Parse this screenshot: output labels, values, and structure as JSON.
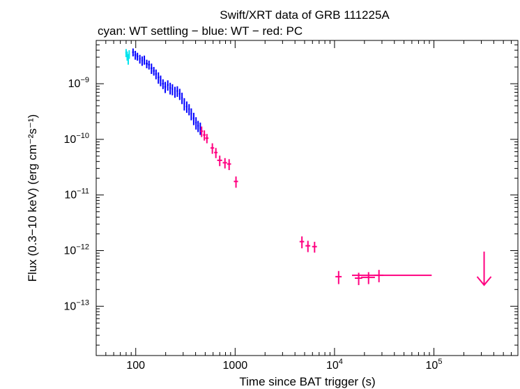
{
  "chart_data": {
    "type": "scatter",
    "title": "Swift/XRT data of GRB 111225A",
    "subtitle": "cyan: WT settling − blue: WT − red: PC",
    "xlabel": "Time since BAT trigger (s)",
    "ylabel": "Flux (0.3−10 keV) (erg cm⁻²s⁻¹)",
    "x_scale": "log",
    "y_scale": "log",
    "xlim": [
      40,
      700000
    ],
    "ylim": [
      1.3e-14,
      6e-09
    ],
    "x_ticks": [
      {
        "value": 100,
        "label": "100"
      },
      {
        "value": 1000,
        "label": "1000"
      },
      {
        "value": 10000,
        "base": "10",
        "exp": "4"
      },
      {
        "value": 100000,
        "base": "10",
        "exp": "5"
      }
    ],
    "y_ticks": [
      {
        "value": 1e-09,
        "base": "10",
        "exp": "−9"
      },
      {
        "value": 1e-10,
        "base": "10",
        "exp": "−10"
      },
      {
        "value": 1e-11,
        "base": "10",
        "exp": "−11"
      },
      {
        "value": 1e-12,
        "base": "10",
        "exp": "−12"
      },
      {
        "value": 1e-13,
        "base": "10",
        "exp": "−13"
      }
    ],
    "colors": {
      "wt_settling": "#00e5ee",
      "wt": "#0000ff",
      "pc": "#ff0080"
    },
    "series": [
      {
        "key": "wt_settling",
        "points": [
          [
            80,
            3.6e-09,
            1.5,
            6e-10
          ],
          [
            82,
            3.2e-09,
            1.5,
            6e-10
          ],
          [
            84,
            2.8e-09,
            1.5,
            6e-10
          ],
          [
            86,
            3.4e-09,
            1.5,
            6e-10
          ]
        ]
      },
      {
        "key": "wt",
        "points": [
          [
            94,
            3.7e-09,
            2,
            6e-10
          ],
          [
            99,
            3.3e-09,
            2,
            6e-10
          ],
          [
            104,
            3.1e-09,
            2,
            5e-10
          ],
          [
            110,
            2.8e-09,
            2,
            5e-10
          ],
          [
            116,
            2.6e-09,
            2,
            5e-10
          ],
          [
            122,
            2.7e-09,
            2,
            5e-10
          ],
          [
            129,
            2.3e-09,
            3,
            4e-10
          ],
          [
            136,
            2.2e-09,
            3,
            4e-10
          ],
          [
            144,
            1.9e-09,
            3,
            4e-10
          ],
          [
            152,
            1.7e-09,
            3,
            3e-10
          ],
          [
            160,
            1.5e-09,
            3,
            3e-10
          ],
          [
            169,
            1.3e-09,
            3,
            3e-10
          ],
          [
            178,
            1.15e-09,
            3,
            2.5e-10
          ],
          [
            188,
            1e-09,
            4,
            2e-10
          ],
          [
            198,
            8.8e-10,
            4,
            2e-10
          ],
          [
            210,
            9.5e-10,
            4,
            2e-10
          ],
          [
            222,
            8.4e-10,
            4,
            2e-10
          ],
          [
            234,
            8e-10,
            4,
            1.8e-10
          ],
          [
            248,
            7.2e-10,
            4,
            1.6e-10
          ],
          [
            262,
            7.4e-10,
            5,
            1.6e-10
          ],
          [
            277,
            6.6e-10,
            5,
            1.5e-10
          ],
          [
            292,
            5.6e-10,
            5,
            1.3e-10
          ],
          [
            308,
            4.4e-10,
            5,
            1.1e-10
          ],
          [
            326,
            3.9e-10,
            6,
            9e-11
          ],
          [
            344,
            3.5e-10,
            6,
            8e-11
          ],
          [
            362,
            2.9e-10,
            6,
            7e-11
          ],
          [
            383,
            2.4e-10,
            7,
            6e-11
          ],
          [
            404,
            2e-10,
            7,
            5e-11
          ],
          [
            424,
            1.75e-10,
            7,
            4e-11
          ],
          [
            446,
            1.6e-10,
            7,
            4e-11
          ]
        ]
      },
      {
        "key": "pc",
        "points": [
          [
            460,
            1.4e-10,
            15,
            3e-11
          ],
          [
            490,
            1.2e-10,
            15,
            2.5e-11
          ],
          [
            520,
            1.05e-10,
            20,
            2e-11
          ],
          [
            590,
            7e-11,
            25,
            1.5e-11
          ],
          [
            640,
            5.8e-11,
            25,
            1.2e-11
          ],
          [
            700,
            4.2e-11,
            40,
            9e-12
          ],
          [
            790,
            3.8e-11,
            40,
            8e-12
          ],
          [
            870,
            3.6e-11,
            40,
            8e-12
          ],
          [
            1020,
            1.75e-11,
            50,
            4e-12
          ],
          [
            4700,
            1.45e-12,
            250,
            3.5e-13
          ],
          [
            5400,
            1.22e-12,
            300,
            2.8e-13
          ],
          [
            6300,
            1.18e-12,
            350,
            2.6e-13
          ],
          [
            11000,
            3.4e-13,
            800,
            9e-14
          ],
          [
            17500,
            3.2e-13,
            1500,
            8e-14
          ],
          [
            22000,
            3.3e-13,
            3500,
            8e-14
          ],
          [
            28000,
            3.6e-13,
            3000,
            9e-14
          ],
          [
            55000,
            3.6e-13,
            40000,
            0
          ]
        ]
      }
    ],
    "upper_limits": [
      {
        "x": 320000,
        "y": 3.5e-13,
        "series": "pc"
      }
    ]
  }
}
